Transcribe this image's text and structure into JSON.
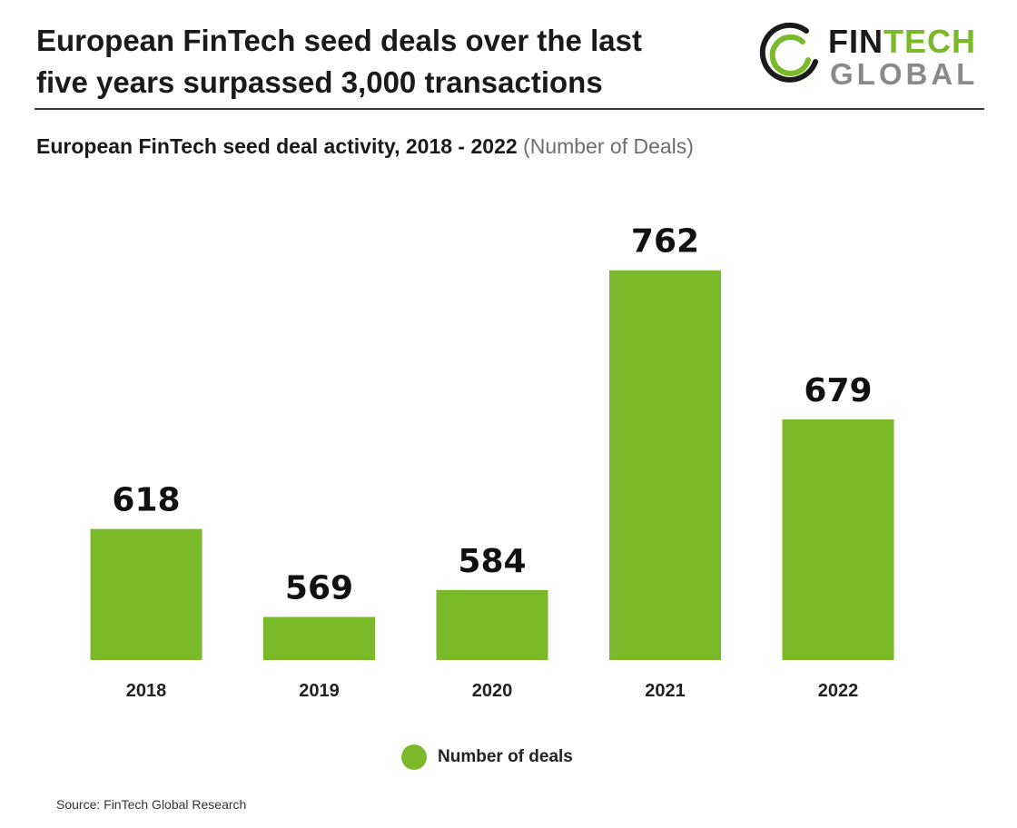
{
  "header": {
    "title_line1": "European FinTech seed deals over the last",
    "title_line2": "five years surpassed 3,000 transactions"
  },
  "logo": {
    "word1_a": "FIN",
    "word1_b": "TECH",
    "word2": "GLOBAL",
    "colors": {
      "dark": "#1a1a1a",
      "green": "#7ab929",
      "gray": "#8a8a8a"
    }
  },
  "chart_data": {
    "type": "bar",
    "title": "European FinTech seed deal activity, 2018 - 2022",
    "title_unit": "(Number of Deals)",
    "categories": [
      "2018",
      "2019",
      "2020",
      "2021",
      "2022"
    ],
    "series": [
      {
        "name": "Number of deals",
        "values": [
          618,
          569,
          584,
          762,
          679
        ],
        "color": "#7ab929"
      }
    ],
    "xlabel": "",
    "ylabel": "",
    "ylim": [
      545,
      775
    ],
    "grid": false,
    "legend": "bottom-center",
    "data_labels": true
  },
  "source": "Source: FinTech Global Research"
}
